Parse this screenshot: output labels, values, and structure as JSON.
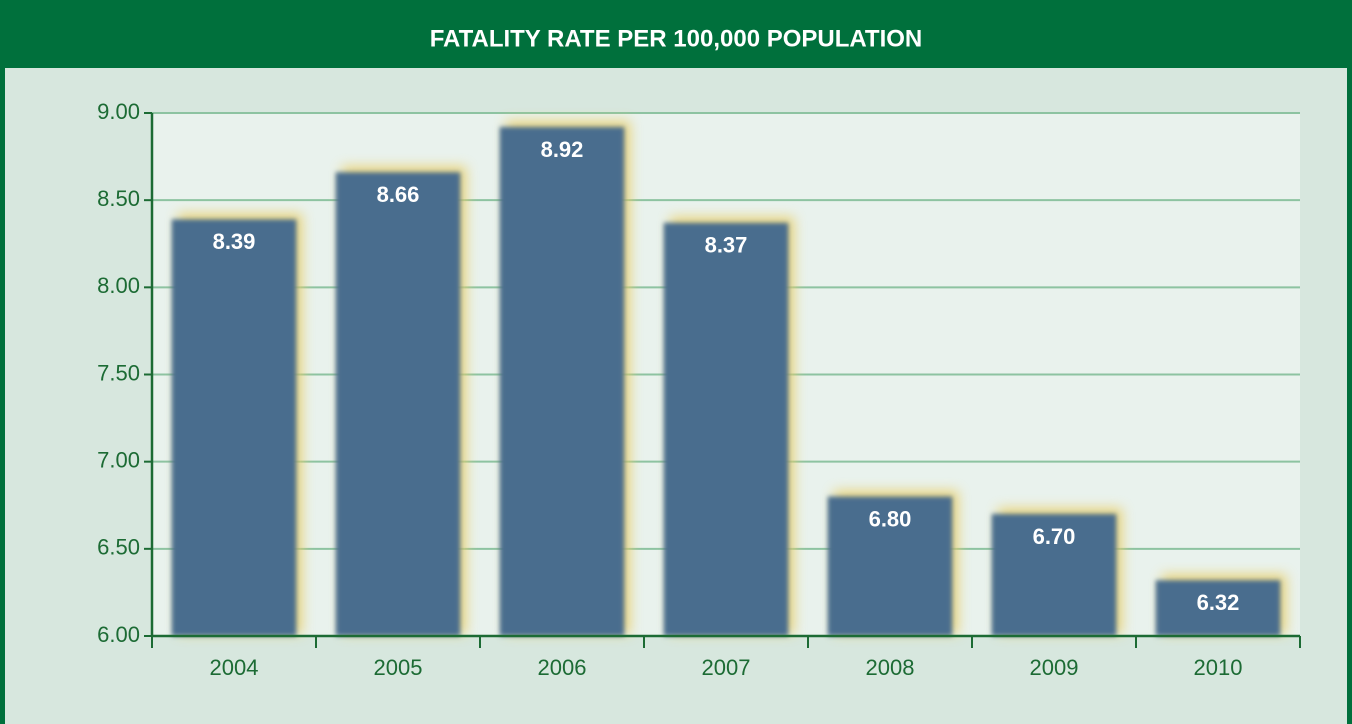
{
  "chart_data": {
    "type": "bar",
    "title": "FATALITY RATE PER 100,000 POPULATION",
    "categories": [
      "2004",
      "2005",
      "2006",
      "2007",
      "2008",
      "2009",
      "2010"
    ],
    "values": [
      8.39,
      8.66,
      8.92,
      8.37,
      6.8,
      6.7,
      6.32
    ],
    "value_labels": [
      "8.39",
      "8.66",
      "8.92",
      "8.37",
      "6.80",
      "6.70",
      "6.32"
    ],
    "color": "#4a6d8e",
    "ylim": [
      6,
      9
    ],
    "yticks": [
      {
        "value": 6,
        "label": "6.00"
      },
      {
        "value": 6.5,
        "label": "6.50"
      },
      {
        "value": 7,
        "label": "7.00"
      },
      {
        "value": 7.5,
        "label": "7.50"
      },
      {
        "value": 8,
        "label": "8.00"
      },
      {
        "value": 8.5,
        "label": "8.50"
      },
      {
        "value": 9,
        "label": "9.00"
      }
    ],
    "grid": true
  }
}
